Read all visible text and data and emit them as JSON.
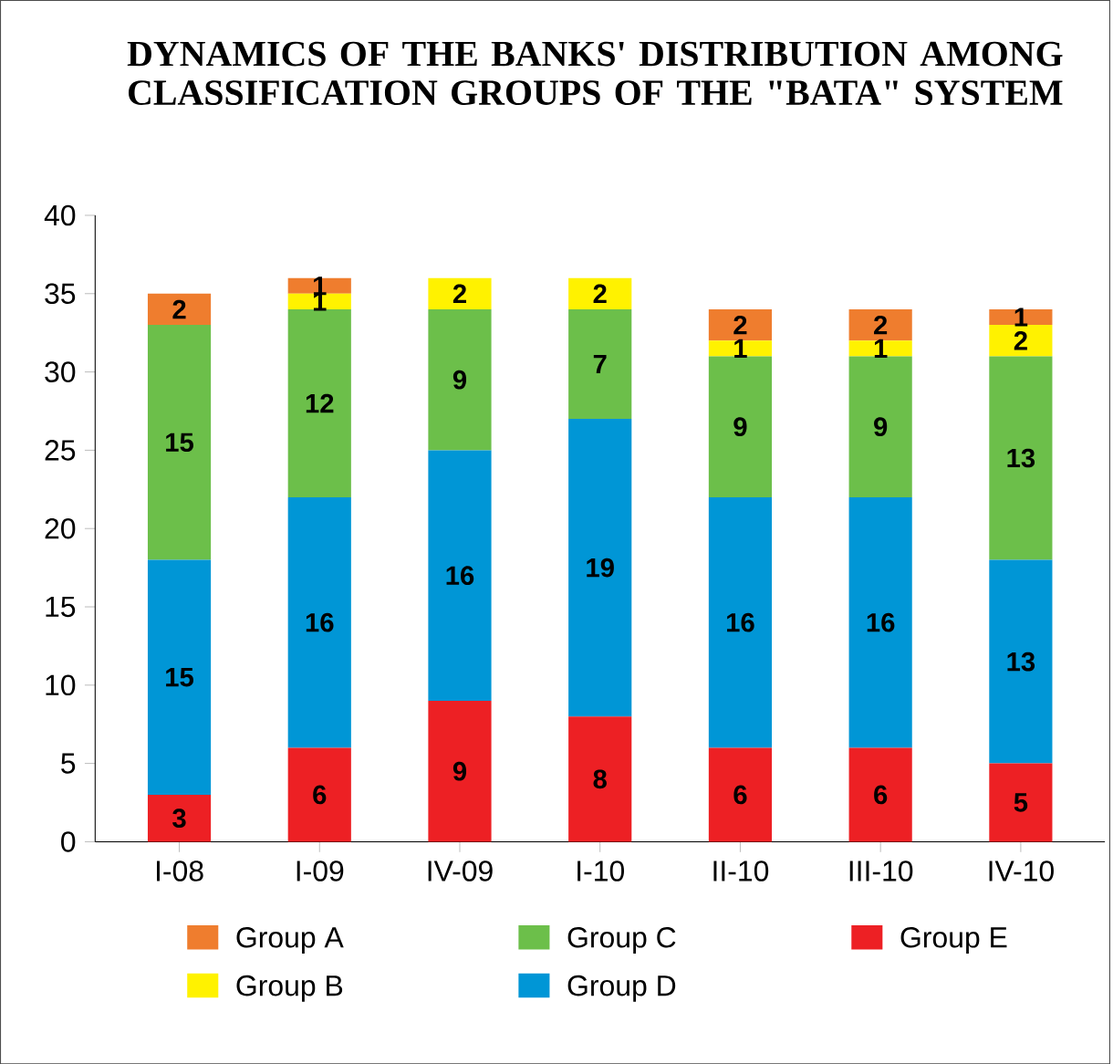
{
  "chart_data": {
    "type": "bar",
    "title": "DYNAMICS OF THE BANKS' DISTRIBUTION AMONG CLASSIFICATION GROUPS OF THE \"BATA\" SYSTEM",
    "categories": [
      "I-08",
      "I-09",
      "IV-09",
      "I-10",
      "II-10",
      "III-10",
      "IV-10"
    ],
    "stacked": true,
    "series": [
      {
        "name": "Group E",
        "color": "#ed2024",
        "values": [
          3,
          6,
          9,
          8,
          6,
          6,
          5
        ]
      },
      {
        "name": "Group D",
        "color": "#0096d6",
        "values": [
          15,
          16,
          16,
          19,
          16,
          16,
          13
        ]
      },
      {
        "name": "Group C",
        "color": "#6cbf4a",
        "values": [
          15,
          12,
          9,
          7,
          9,
          9,
          13
        ]
      },
      {
        "name": "Group B",
        "color": "#fff200",
        "values": [
          null,
          1,
          2,
          2,
          1,
          1,
          2
        ]
      },
      {
        "name": "Group A",
        "color": "#ef7d2e",
        "values": [
          2,
          1,
          null,
          null,
          2,
          2,
          1
        ]
      }
    ],
    "ylim": [
      0,
      40
    ],
    "yticks": [
      0,
      5,
      10,
      15,
      20,
      25,
      30,
      35,
      40
    ],
    "data_labels": true,
    "legend": "bottom"
  }
}
